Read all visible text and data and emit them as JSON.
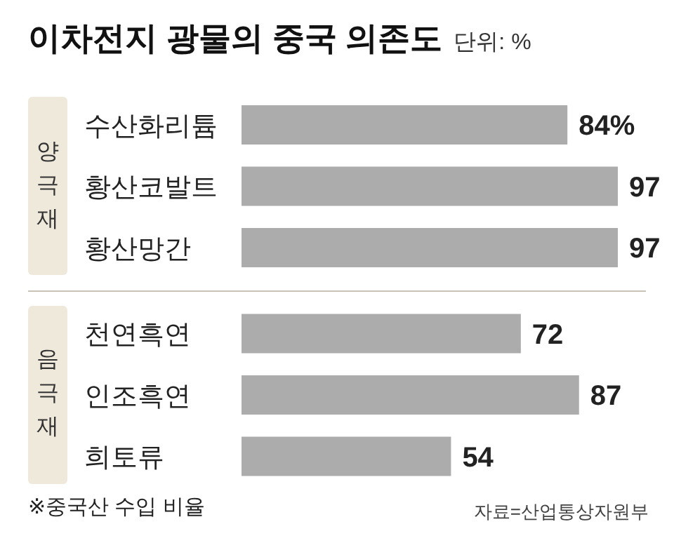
{
  "chart_data": {
    "type": "bar",
    "orientation": "horizontal",
    "title": "이차전지 광물의 중국 의존도",
    "subtitle": "단위: %",
    "categories": [
      "수산화리튬",
      "황산코발트",
      "황산망간",
      "천연흑연",
      "인조흑연",
      "희토류"
    ],
    "values": [
      84,
      97,
      97,
      72,
      87,
      54
    ],
    "value_labels": [
      "84%",
      "97",
      "97",
      "72",
      "87",
      "54"
    ],
    "color": "#acacac",
    "annotations": [
      "양극재",
      "음극재",
      "※중국산 수입 비율",
      "자료=산업통상자원부"
    ]
  }
}
